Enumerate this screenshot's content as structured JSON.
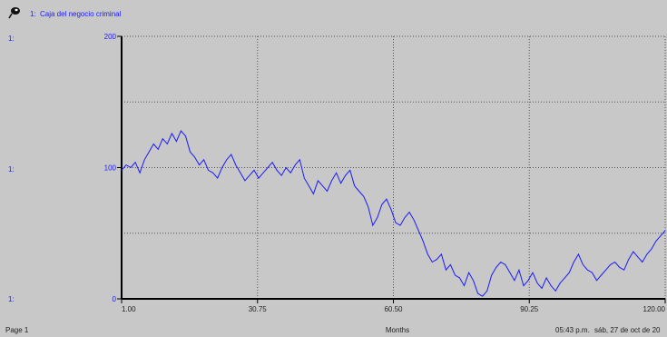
{
  "legend": {
    "prefix": "1:",
    "name": "Caja del negocio criminal",
    "icon": "pin-icon"
  },
  "scale_prefix": "1:",
  "footer": {
    "page": "Page 1",
    "xlabel": "Months",
    "time": "05:43 p.m.",
    "date": "sáb, 27 de oct de 20"
  },
  "colors": {
    "line": "#1a1aff",
    "background": "#c8c8c8",
    "axis": "#000000"
  },
  "chart_data": {
    "type": "line",
    "x_range": [
      1.0,
      120.0
    ],
    "xlim": [
      1.0,
      120.0
    ],
    "ylim": [
      0,
      200
    ],
    "x_ticks": [
      "1.00",
      "30.75",
      "60.50",
      "90.25",
      "120.00"
    ],
    "y_ticks": [
      "200",
      "100",
      "0"
    ],
    "grid": true,
    "legend_position": "top-left",
    "series": [
      {
        "name": "Caja del negocio criminal",
        "x": [
          1,
          2,
          3,
          4,
          5,
          6,
          7,
          8,
          9,
          10,
          11,
          12,
          13,
          14,
          15,
          16,
          17,
          18,
          19,
          20,
          21,
          22,
          23,
          24,
          25,
          26,
          27,
          28,
          29,
          30,
          31,
          32,
          33,
          34,
          35,
          36,
          37,
          38,
          39,
          40,
          41,
          42,
          43,
          44,
          45,
          46,
          47,
          48,
          49,
          50,
          51,
          52,
          53,
          54,
          55,
          56,
          57,
          58,
          59,
          60,
          61,
          62,
          63,
          64,
          65,
          66,
          67,
          68,
          69,
          70,
          71,
          72,
          73,
          74,
          75,
          76,
          77,
          78,
          79,
          80,
          81,
          82,
          83,
          84,
          85,
          86,
          87,
          88,
          89,
          90,
          91,
          92,
          93,
          94,
          95,
          96,
          97,
          98,
          99,
          100,
          101,
          102,
          103,
          104,
          105,
          106,
          107,
          108,
          109,
          110,
          111,
          112,
          113,
          114,
          115,
          116,
          117,
          118,
          119,
          120
        ],
        "values": [
          98,
          102,
          100,
          104,
          96,
          106,
          112,
          118,
          114,
          122,
          118,
          126,
          120,
          128,
          124,
          112,
          108,
          102,
          106,
          98,
          96,
          92,
          100,
          106,
          110,
          102,
          96,
          90,
          94,
          98,
          92,
          96,
          100,
          104,
          98,
          94,
          100,
          96,
          102,
          106,
          92,
          86,
          80,
          90,
          86,
          82,
          90,
          96,
          88,
          94,
          98,
          86,
          82,
          78,
          70,
          56,
          62,
          72,
          76,
          68,
          58,
          56,
          62,
          66,
          60,
          52,
          44,
          34,
          28,
          30,
          34,
          22,
          26,
          18,
          16,
          10,
          20,
          14,
          4,
          2,
          6,
          18,
          24,
          28,
          26,
          20,
          14,
          22,
          10,
          14,
          20,
          12,
          8,
          16,
          10,
          6,
          12,
          16,
          20,
          28,
          34,
          26,
          22,
          20,
          14,
          18,
          22,
          26,
          28,
          24,
          22,
          30,
          36,
          32,
          28,
          34,
          38,
          44,
          48,
          52
        ]
      }
    ]
  }
}
